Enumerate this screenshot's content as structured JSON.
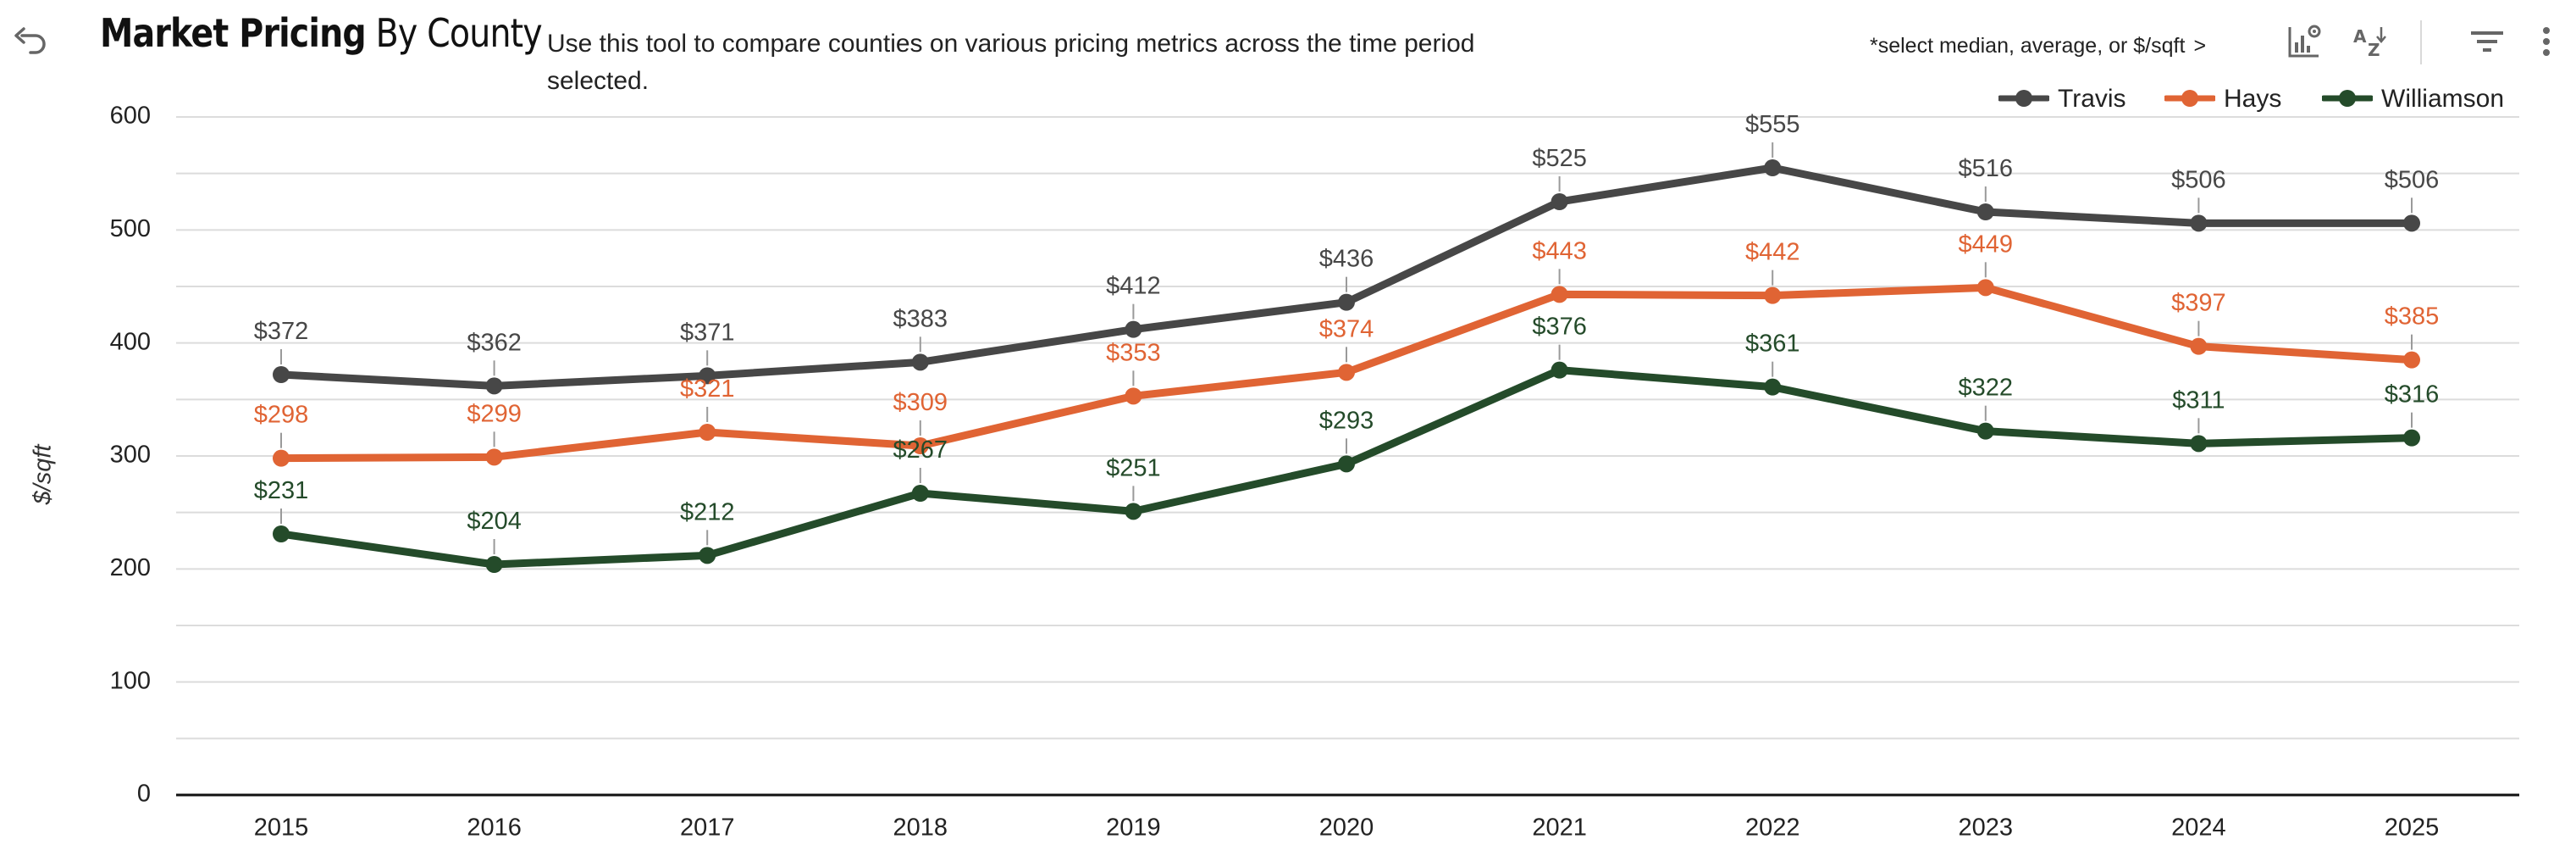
{
  "header": {
    "title_bold": "Market Pricing",
    "title_normal": "By County",
    "description": "Use this tool to compare counties on various pricing metrics across the time period selected.",
    "hint": "*select median, average, or $/sqft",
    "hint_arrow": ">"
  },
  "icons": {
    "back": "undo-icon",
    "chart_settings": "chart-settings-icon",
    "sort": "sort-az-icon",
    "filter": "filter-icon",
    "more": "more-vert-icon"
  },
  "colors": {
    "travis": "#474747",
    "hays": "#E06434",
    "williamson": "#244B2A",
    "grid": "#dcdcdc",
    "axis": "#111111"
  },
  "chart_data": {
    "type": "line",
    "title": "Market Pricing By County",
    "xlabel": "",
    "ylabel": "$/sqft",
    "ylim": [
      0,
      600
    ],
    "yticks": [
      0,
      100,
      200,
      300,
      400,
      500,
      600
    ],
    "grid": true,
    "legend_position": "top-right",
    "categories": [
      "2015",
      "2016",
      "2017",
      "2018",
      "2019",
      "2020",
      "2021",
      "2022",
      "2023",
      "2024",
      "2025"
    ],
    "series": [
      {
        "name": "Travis",
        "color": "#474747",
        "values": [
          372,
          362,
          371,
          383,
          412,
          436,
          525,
          555,
          516,
          506,
          506
        ],
        "labels": [
          "$372",
          "$362",
          "$371",
          "$383",
          "$412",
          "$436",
          "$525",
          "$555",
          "$516",
          "$506",
          "$506"
        ]
      },
      {
        "name": "Hays",
        "color": "#E06434",
        "values": [
          298,
          299,
          321,
          309,
          353,
          374,
          443,
          442,
          449,
          397,
          385
        ],
        "labels": [
          "$298",
          "$299",
          "$321",
          "$309",
          "$353",
          "$374",
          "$443",
          "$442",
          "$449",
          "$397",
          "$385"
        ]
      },
      {
        "name": "Williamson",
        "color": "#244B2A",
        "values": [
          231,
          204,
          212,
          267,
          251,
          293,
          376,
          361,
          322,
          311,
          316
        ],
        "labels": [
          "$231",
          "$204",
          "$212",
          "$267",
          "$251",
          "$293",
          "$376",
          "$361",
          "$322",
          "$311",
          "$316"
        ]
      }
    ]
  }
}
